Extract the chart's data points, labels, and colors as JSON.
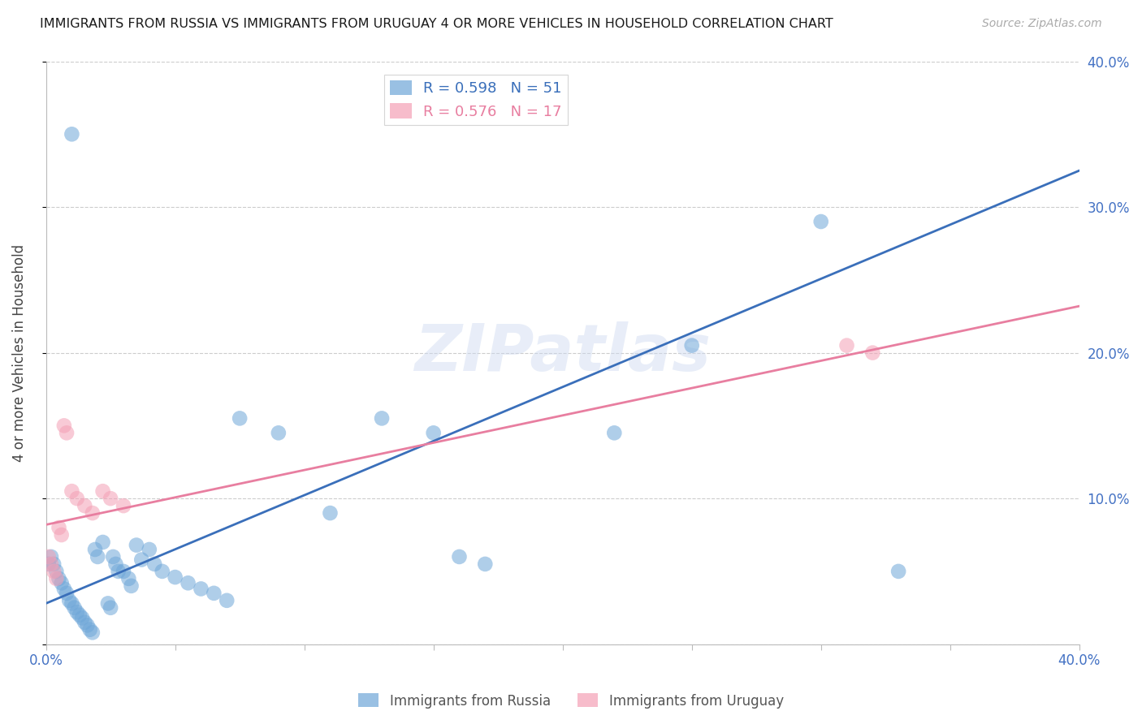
{
  "title": "IMMIGRANTS FROM RUSSIA VS IMMIGRANTS FROM URUGUAY 4 OR MORE VEHICLES IN HOUSEHOLD CORRELATION CHART",
  "source": "Source: ZipAtlas.com",
  "ylabel": "4 or more Vehicles in Household",
  "xlim": [
    0.0,
    0.4
  ],
  "ylim": [
    0.0,
    0.4
  ],
  "russia_R": 0.598,
  "russia_N": 51,
  "uruguay_R": 0.576,
  "uruguay_N": 17,
  "russia_color": "#6ea6d8",
  "uruguay_color": "#f4a0b5",
  "russia_line_color": "#3a6fba",
  "uruguay_line_color": "#e87ea0",
  "watermark_text": "ZIPatlas",
  "background_color": "#ffffff",
  "grid_color": "#cccccc",
  "tick_label_color": "#4472c4",
  "russia_line_start_y": 0.028,
  "russia_line_end_y": 0.325,
  "uruguay_line_start_y": 0.082,
  "uruguay_line_end_y": 0.232,
  "russia_x": [
    0.001,
    0.002,
    0.003,
    0.004,
    0.005,
    0.006,
    0.007,
    0.008,
    0.009,
    0.01,
    0.011,
    0.012,
    0.013,
    0.014,
    0.015,
    0.016,
    0.017,
    0.018,
    0.019,
    0.02,
    0.022,
    0.024,
    0.025,
    0.026,
    0.027,
    0.028,
    0.03,
    0.032,
    0.033,
    0.035,
    0.037,
    0.04,
    0.042,
    0.045,
    0.05,
    0.055,
    0.06,
    0.065,
    0.07,
    0.075,
    0.09,
    0.11,
    0.13,
    0.15,
    0.16,
    0.17,
    0.22,
    0.25,
    0.3,
    0.33,
    0.01
  ],
  "russia_y": [
    0.055,
    0.06,
    0.055,
    0.05,
    0.045,
    0.042,
    0.038,
    0.035,
    0.03,
    0.028,
    0.025,
    0.022,
    0.02,
    0.018,
    0.015,
    0.013,
    0.01,
    0.008,
    0.065,
    0.06,
    0.07,
    0.028,
    0.025,
    0.06,
    0.055,
    0.05,
    0.05,
    0.045,
    0.04,
    0.068,
    0.058,
    0.065,
    0.055,
    0.05,
    0.046,
    0.042,
    0.038,
    0.035,
    0.03,
    0.155,
    0.145,
    0.09,
    0.155,
    0.145,
    0.06,
    0.055,
    0.145,
    0.205,
    0.29,
    0.05,
    0.35
  ],
  "uruguay_x": [
    0.001,
    0.002,
    0.003,
    0.004,
    0.005,
    0.006,
    0.007,
    0.008,
    0.01,
    0.012,
    0.015,
    0.018,
    0.022,
    0.025,
    0.03,
    0.31,
    0.32
  ],
  "uruguay_y": [
    0.06,
    0.055,
    0.05,
    0.045,
    0.08,
    0.075,
    0.15,
    0.145,
    0.105,
    0.1,
    0.095,
    0.09,
    0.105,
    0.1,
    0.095,
    0.205,
    0.2
  ]
}
